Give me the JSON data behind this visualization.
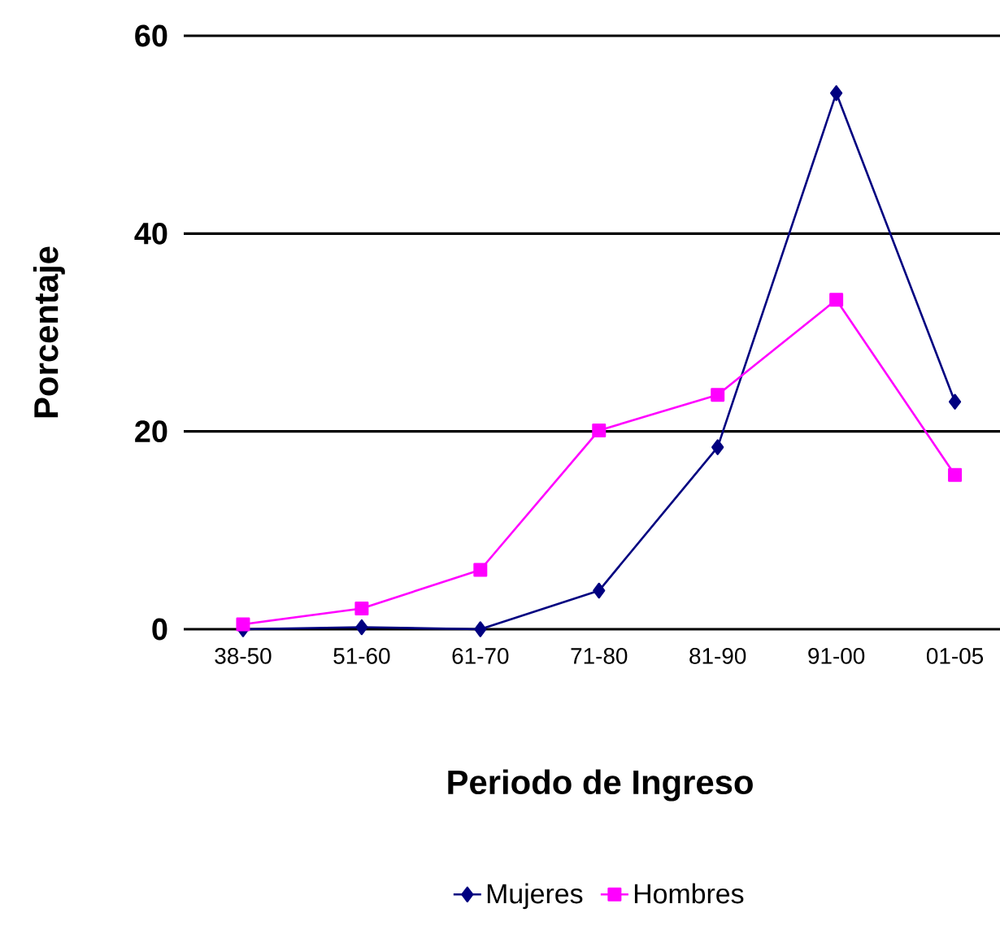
{
  "chart_data": {
    "type": "line",
    "xlabel": "Periodo de Ingreso",
    "ylabel": "Porcentaje",
    "categories": [
      "38-50",
      "51-60",
      "61-70",
      "71-80",
      "81-90",
      "91-00",
      "01-05"
    ],
    "series": [
      {
        "name": "Mujeres",
        "color": "#000080",
        "marker": "diamond",
        "values": [
          0,
          0.2,
          0,
          3.9,
          18.4,
          54.2,
          23.0
        ]
      },
      {
        "name": "Hombres",
        "color": "#ff00ff",
        "marker": "square",
        "values": [
          0.5,
          2.1,
          6.0,
          20.1,
          23.7,
          33.3,
          15.6
        ]
      }
    ],
    "ylim": [
      0,
      60
    ],
    "yticks": [
      0,
      20,
      40,
      60
    ],
    "grid": "y",
    "legend": "bottom"
  }
}
